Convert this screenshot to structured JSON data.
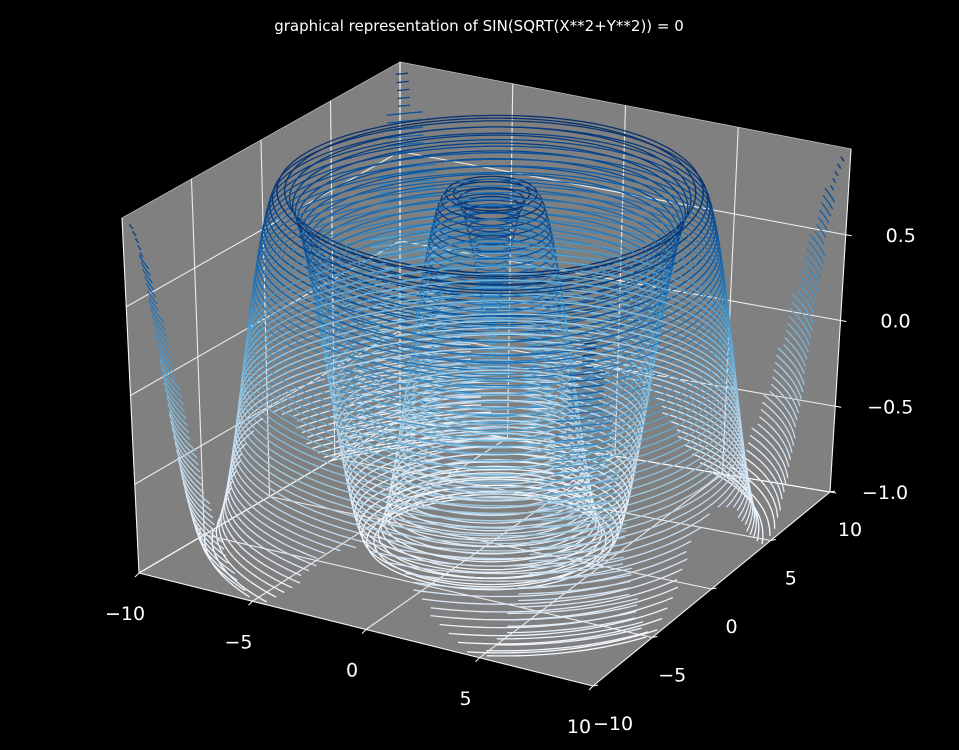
{
  "chart_data": {
    "type": "contour3d",
    "title": "graphical representation of SIN(SQRT(X**2+Y**2)) = 0",
    "function": "z = sin(sqrt(x**2 + y**2))",
    "x": {
      "range": [
        -10,
        10
      ],
      "ticks": [
        -10,
        -5,
        0,
        5,
        10
      ],
      "tick_labels": [
        "−10",
        "−5",
        "0",
        "5",
        "10"
      ]
    },
    "y": {
      "range": [
        -10,
        10
      ],
      "ticks": [
        -10,
        -5,
        0,
        5,
        10
      ],
      "tick_labels": [
        "−10",
        "−5",
        "0",
        "5",
        "10"
      ]
    },
    "z": {
      "range": [
        -1.0,
        1.0
      ],
      "ticks": [
        -1.0,
        -0.5,
        0.0,
        0.5
      ],
      "tick_labels": [
        "−1.0",
        "−0.5",
        "0.0",
        "0.5"
      ]
    },
    "contour_levels": 50,
    "colormap": "Blues",
    "colormap_low": "#f7fbff",
    "colormap_high": "#08306b",
    "figure_background": "#000000",
    "pane_color": "#808080",
    "grid": true,
    "grid_color": "#ffffff",
    "text_color": "#ffffff"
  }
}
